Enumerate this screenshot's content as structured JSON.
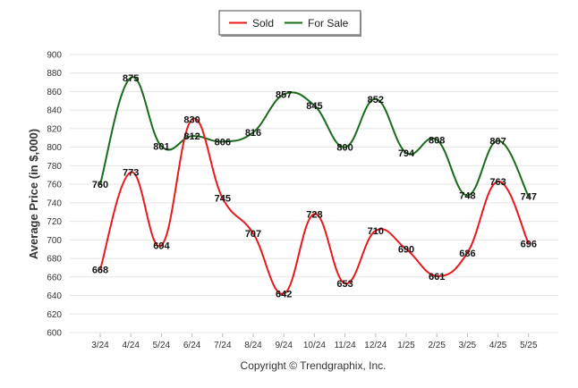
{
  "chart_data": {
    "type": "line",
    "categories": [
      "3/24",
      "4/24",
      "5/24",
      "6/24",
      "7/24",
      "8/24",
      "9/24",
      "10/24",
      "11/24",
      "12/24",
      "1/25",
      "2/25",
      "3/25",
      "4/25",
      "5/25"
    ],
    "series": [
      {
        "name": "Sold",
        "color": "#e8191c",
        "values": [
          668,
          773,
          694,
          830,
          745,
          707,
          642,
          728,
          653,
          710,
          690,
          661,
          686,
          763,
          696
        ]
      },
      {
        "name": "For Sale",
        "color": "#1a6b1a",
        "values": [
          760,
          875,
          801,
          812,
          806,
          816,
          857,
          845,
          800,
          852,
          794,
          808,
          748,
          807,
          747
        ]
      }
    ],
    "ylabel": "Average Price (in $,000)",
    "ylim": [
      600,
      900
    ],
    "yticks": [
      "600",
      "620",
      "640",
      "660",
      "680",
      "700",
      "720",
      "740",
      "760",
      "780",
      "800",
      "820",
      "840",
      "860",
      "880",
      "900"
    ],
    "grid": true,
    "legend_position": "top-center",
    "footer": "Copyright © Trendgraphix, Inc."
  }
}
